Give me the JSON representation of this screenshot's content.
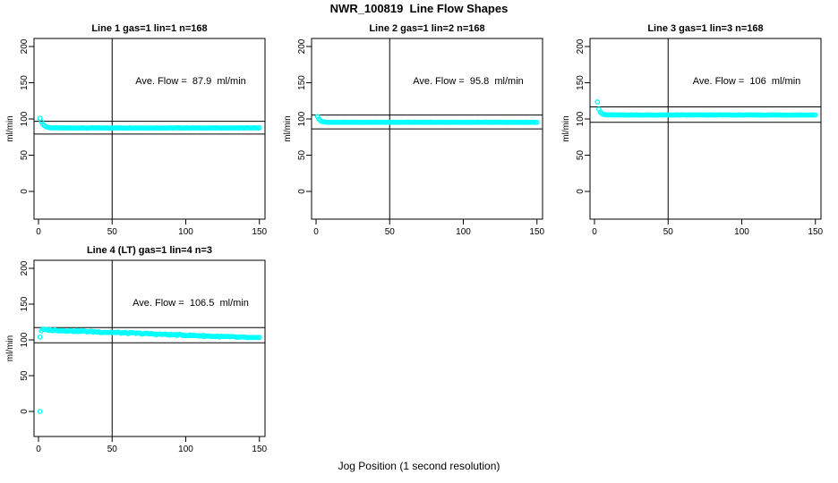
{
  "figure": {
    "title": "NWR_100819  Line Flow Shapes",
    "xlabel": "Jog Position (1 second resolution)"
  },
  "colors": {
    "marker": "#00ffff",
    "axis": "#000000",
    "background": "#ffffff"
  },
  "chart_data": {
    "type": "scatter",
    "xlim": [
      -3,
      157
    ],
    "ylim": [
      -35,
      212
    ],
    "grid": false,
    "panels": [
      {
        "title": "Line 1 gas=1 lin=1 n=168",
        "line": "Line 1",
        "gas": 1,
        "lin": 1,
        "n": 168,
        "annotation": "Ave. Flow =  87.9  ml/min",
        "ave_flow_ml_min": 87.9,
        "ylabel": "ml/min",
        "x_ticks": [
          0,
          50,
          100,
          150
        ],
        "y_ticks": [
          0,
          50,
          100,
          150,
          200
        ],
        "h_lines": [
          96.7,
          79.1
        ],
        "v_line": 50,
        "series": {
          "transient_points": [
            [
              1,
              101.0
            ],
            [
              2,
              95.9
            ],
            [
              3,
              92.5
            ],
            [
              4,
              90.7
            ],
            [
              5,
              89.5
            ],
            [
              6,
              88.7
            ],
            [
              7,
              88.2
            ],
            [
              8,
              87.9
            ],
            [
              9,
              87.8
            ],
            [
              10,
              87.7
            ],
            [
              11,
              87.6
            ],
            [
              12,
              87.6
            ]
          ],
          "segments": [
            {
              "type": "flat",
              "x1": 13,
              "x2": 150,
              "value": 87.6,
              "noise": 0.25
            }
          ],
          "outliers": []
        }
      },
      {
        "title": "Line 2 gas=1 lin=2 n=168",
        "line": "Line 2",
        "gas": 1,
        "lin": 2,
        "n": 168,
        "annotation": "Ave. Flow =  95.8  ml/min",
        "ave_flow_ml_min": 95.8,
        "ylabel": "ml/min",
        "x_ticks": [
          0,
          50,
          100,
          150
        ],
        "y_ticks": [
          0,
          50,
          100,
          150,
          200
        ],
        "h_lines": [
          105.4,
          86.2
        ],
        "v_line": 50,
        "series": {
          "transient_points": [
            [
              1,
              103.3
            ],
            [
              2,
              99.7
            ],
            [
              3,
              97.7
            ],
            [
              4,
              96.5
            ],
            [
              5,
              96.0
            ],
            [
              6,
              95.7
            ],
            [
              7,
              95.5
            ],
            [
              8,
              95.4
            ],
            [
              9,
              95.4
            ],
            [
              10,
              95.4
            ]
          ],
          "segments": [
            {
              "type": "flat",
              "x1": 11,
              "x2": 150,
              "value": 95.4,
              "noise": 0.25
            }
          ],
          "outliers": []
        }
      },
      {
        "title": "Line 3 gas=1 lin=3 n=168",
        "line": "Line 3",
        "gas": 1,
        "lin": 3,
        "n": 168,
        "annotation": "Ave. Flow =  106  ml/min",
        "ave_flow_ml_min": 106,
        "ylabel": "ml/min",
        "x_ticks": [
          0,
          50,
          100,
          150
        ],
        "y_ticks": [
          0,
          50,
          100,
          150,
          200
        ],
        "h_lines": [
          116.6,
          95.4
        ],
        "v_line": 50,
        "series": {
          "transient_points": [
            [
              2,
              123.5
            ],
            [
              3,
              113.5
            ],
            [
              4,
              109.5
            ],
            [
              5,
              107.5
            ],
            [
              6,
              106.5
            ],
            [
              7,
              106.0
            ],
            [
              8,
              105.8
            ],
            [
              9,
              105.6
            ],
            [
              10,
              105.5
            ]
          ],
          "segments": [
            {
              "type": "flat",
              "x1": 11,
              "x2": 150,
              "value": 105.5,
              "noise": 0.25
            }
          ],
          "outliers": []
        }
      },
      {
        "title": "Line 4 (LT) gas=1 lin=4 n=3",
        "line": "Line 4 (LT)",
        "gas": 1,
        "lin": 4,
        "n": 3,
        "annotation": "Ave. Flow =  106.5  ml/min",
        "ave_flow_ml_min": 106.5,
        "ylabel": "ml/min",
        "x_ticks": [
          0,
          50,
          100,
          150
        ],
        "y_ticks": [
          0,
          50,
          100,
          150,
          200
        ],
        "h_lines": [
          117.2,
          95.9
        ],
        "v_line": 50,
        "series": {
          "transient_points": [
            [
              1,
              104.0
            ],
            [
              2,
              112.5
            ],
            [
              3,
              115.2
            ],
            [
              4,
              115.0
            ],
            [
              5,
              114.6
            ],
            [
              6,
              114.2
            ]
          ],
          "segments": [
            {
              "type": "ramp",
              "x1": 7,
              "x2": 150,
              "v1": 113.8,
              "v2": 102.6,
              "noise": 0.9
            }
          ],
          "outliers": [
            [
              1,
              0
            ]
          ]
        }
      }
    ]
  }
}
